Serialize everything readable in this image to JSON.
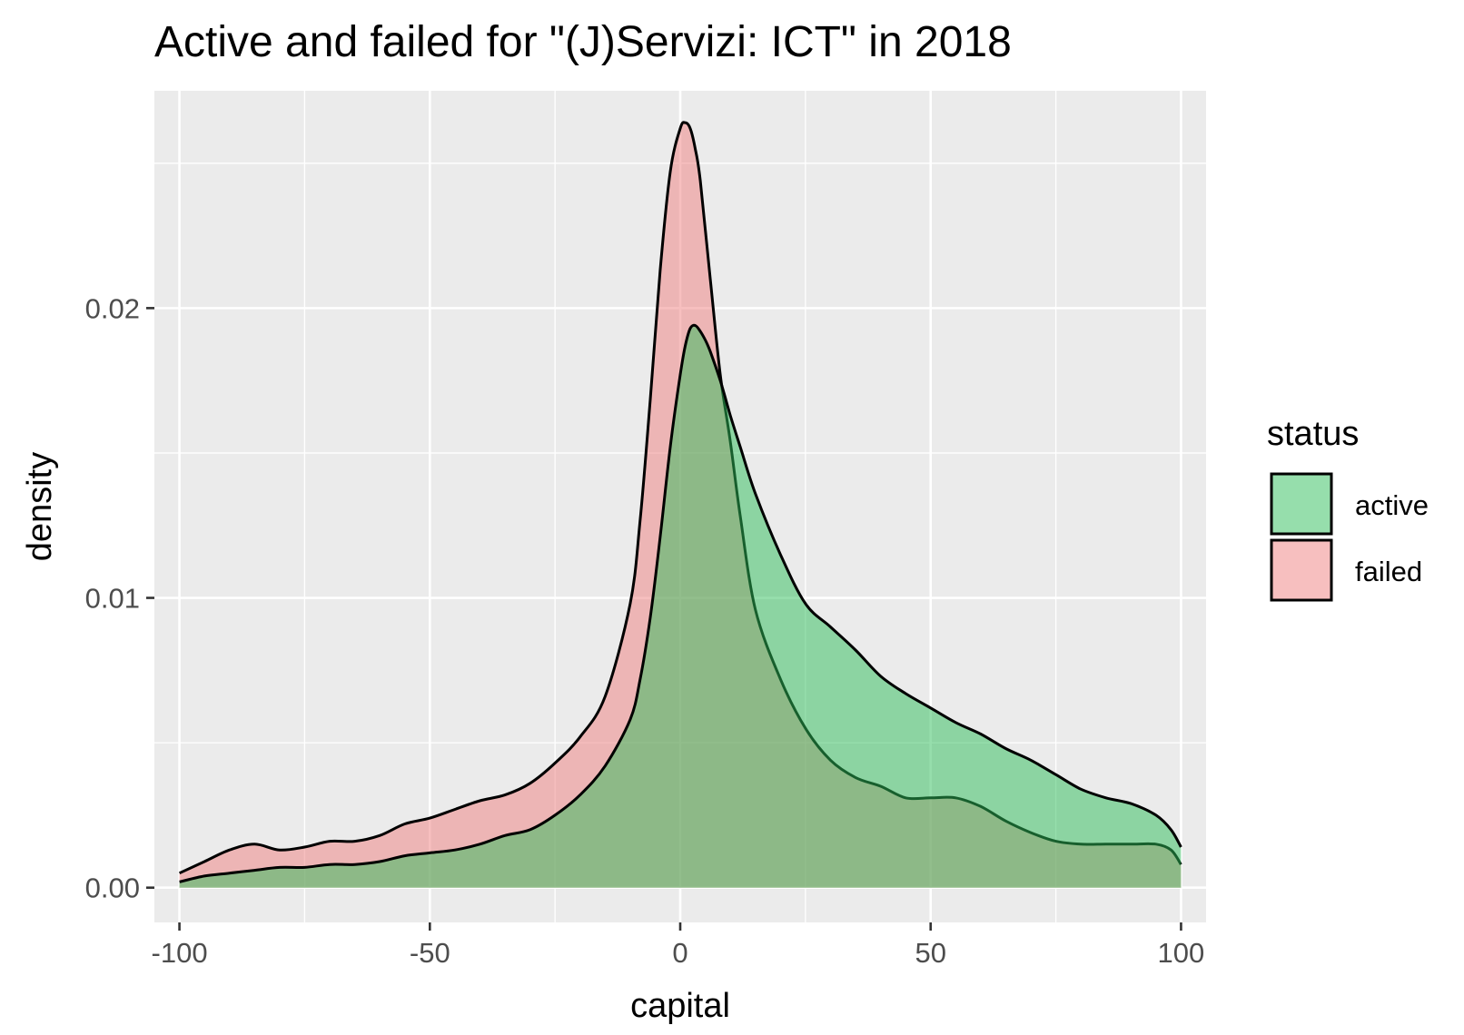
{
  "chart_data": {
    "type": "area",
    "title": "Active and failed for \"(J)Servizi: ICT\" in 2018",
    "xlabel": "capital",
    "ylabel": "density",
    "xlim": [
      -105,
      105
    ],
    "ylim": [
      -0.0012,
      0.0275
    ],
    "x_ticks": [
      -100,
      -50,
      0,
      50,
      100
    ],
    "x_tick_labels": [
      "-100",
      "-50",
      "0",
      "50",
      "100"
    ],
    "y_ticks": [
      0.0,
      0.01,
      0.02
    ],
    "y_tick_labels": [
      "0.00",
      "0.01",
      "0.02"
    ],
    "grid": true,
    "legend": {
      "title": "status",
      "position": "right"
    },
    "series": [
      {
        "name": "active",
        "color": "#2dbd5a",
        "x": [
          -100,
          -95,
          -90,
          -85,
          -80,
          -75,
          -70,
          -65,
          -60,
          -55,
          -50,
          -45,
          -40,
          -35,
          -30,
          -25,
          -20,
          -15,
          -10,
          -8,
          -6,
          -4,
          -2,
          0,
          1,
          2,
          3,
          4,
          5,
          6,
          8,
          10,
          12,
          15,
          20,
          25,
          30,
          35,
          40,
          45,
          50,
          55,
          60,
          65,
          70,
          75,
          80,
          85,
          90,
          95,
          98,
          100
        ],
        "values": [
          0.0002,
          0.0004,
          0.0005,
          0.0006,
          0.0007,
          0.0007,
          0.0008,
          0.0008,
          0.0009,
          0.0011,
          0.0012,
          0.0013,
          0.0015,
          0.0018,
          0.002,
          0.0025,
          0.0032,
          0.0042,
          0.0058,
          0.0072,
          0.0093,
          0.0121,
          0.0152,
          0.0177,
          0.0187,
          0.0193,
          0.0194,
          0.0192,
          0.0189,
          0.0185,
          0.0175,
          0.0163,
          0.0152,
          0.0136,
          0.0115,
          0.0098,
          0.009,
          0.0082,
          0.0073,
          0.0067,
          0.0062,
          0.0057,
          0.0053,
          0.0048,
          0.0044,
          0.0039,
          0.0034,
          0.0031,
          0.0029,
          0.0025,
          0.002,
          0.0014
        ]
      },
      {
        "name": "failed",
        "color": "#f08080",
        "x": [
          -100,
          -95,
          -90,
          -85,
          -80,
          -75,
          -70,
          -65,
          -60,
          -55,
          -50,
          -45,
          -40,
          -35,
          -30,
          -25,
          -20,
          -15,
          -10,
          -8,
          -6,
          -4,
          -2,
          0,
          1,
          2,
          3,
          4,
          6,
          8,
          10,
          12,
          15,
          20,
          25,
          30,
          35,
          40,
          45,
          50,
          55,
          60,
          65,
          70,
          75,
          80,
          85,
          90,
          95,
          98,
          100
        ],
        "values": [
          0.0005,
          0.0009,
          0.0013,
          0.0015,
          0.0013,
          0.0014,
          0.0016,
          0.0016,
          0.0018,
          0.0022,
          0.0024,
          0.0027,
          0.003,
          0.0032,
          0.0036,
          0.0043,
          0.0052,
          0.0066,
          0.0098,
          0.0127,
          0.0168,
          0.0213,
          0.0247,
          0.0262,
          0.0264,
          0.0262,
          0.0255,
          0.0244,
          0.021,
          0.0177,
          0.0154,
          0.0128,
          0.0096,
          0.0072,
          0.0055,
          0.0044,
          0.0038,
          0.0035,
          0.0031,
          0.0031,
          0.0031,
          0.0028,
          0.0023,
          0.0019,
          0.0016,
          0.0015,
          0.0015,
          0.0015,
          0.0015,
          0.0013,
          0.0008
        ]
      }
    ]
  }
}
